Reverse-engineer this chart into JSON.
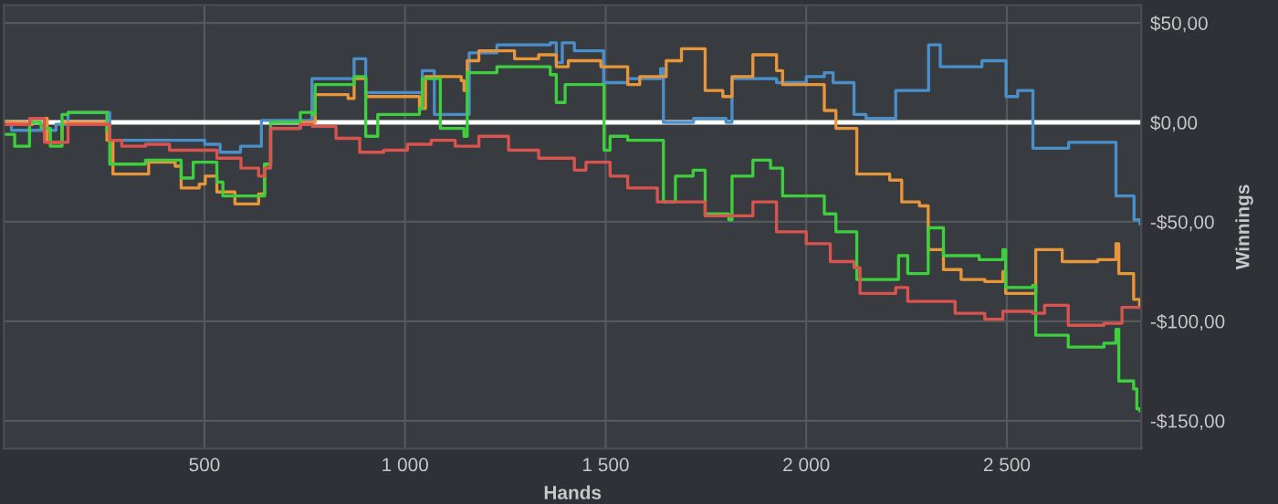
{
  "chart_data": {
    "type": "step",
    "xlabel": "Hands",
    "ylabel": "Winnings",
    "xlim": [
      0,
      2835
    ],
    "ylim": [
      -164,
      59
    ],
    "xticks": [
      500,
      {
        "value": 1000,
        "label": "1 000"
      },
      {
        "value": 1500,
        "label": "1 500"
      },
      {
        "value": 2000,
        "label": "2 000"
      },
      {
        "value": 2500,
        "label": "2 500"
      }
    ],
    "yticks": [
      {
        "value": 50,
        "label": "$50,00"
      },
      {
        "value": 0,
        "label": "$0,00"
      },
      {
        "value": -50,
        "label": "-$50,00"
      },
      {
        "value": -100,
        "label": "-$100,00"
      },
      {
        "value": -150,
        "label": "-$150,00"
      }
    ],
    "grid": true,
    "line_style": "solid",
    "marker": "none",
    "ref_lines": [
      {
        "axis": "y",
        "value": 0,
        "color": "#ffffff"
      }
    ],
    "series": [
      {
        "color": "#4a8fc9",
        "x": [
          0,
          19,
          130,
          160,
          256,
          264,
          501,
          539,
          590,
          642,
          768,
          873,
          902,
          1036,
          1043,
          1066,
          1073,
          1160,
          1229,
          1362,
          1377,
          1392,
          1422,
          1495,
          1555,
          1637,
          1644,
          1719,
          1800,
          1815,
          1926,
          2000,
          2045,
          2067,
          2119,
          2149,
          2223,
          2305,
          2334,
          2431,
          2438,
          2498,
          2527,
          2565,
          2654,
          2772,
          2817,
          2832
        ],
        "values": [
          0,
          -4,
          -1,
          5,
          5,
          -9,
          -11,
          -15,
          -12,
          1,
          22,
          32,
          15,
          15,
          26,
          26,
          4,
          35,
          39,
          40,
          30,
          40,
          36,
          20,
          22,
          27,
          0,
          2,
          0,
          22,
          20,
          23,
          25,
          20,
          4,
          2,
          16,
          39,
          28,
          28,
          31,
          13,
          16,
          -13,
          -10,
          -37,
          -49,
          -51
        ]
      },
      {
        "color": "#e8963a",
        "x": [
          0,
          56,
          71,
          108,
          145,
          234,
          257,
          272,
          353,
          361,
          427,
          442,
          487,
          502,
          531,
          576,
          635,
          650,
          665,
          739,
          769,
          776,
          858,
          873,
          902,
          1036,
          1051,
          1140,
          1147,
          1155,
          1184,
          1273,
          1333,
          1377,
          1407,
          1488,
          1555,
          1585,
          1637,
          1651,
          1689,
          1718,
          1748,
          1792,
          1815,
          1867,
          1926,
          1941,
          2000,
          2045,
          2074,
          2104,
          2126,
          2208,
          2238,
          2282,
          2304,
          2342,
          2386,
          2445,
          2490,
          2497,
          2564,
          2572,
          2638,
          2727,
          2772,
          2779,
          2816,
          2831
        ],
        "values": [
          0,
          -1,
          2,
          -10,
          0,
          0,
          -9,
          -26,
          -26,
          -20,
          -22,
          -33,
          -31,
          -27,
          -35,
          -41,
          -36,
          -21,
          -3,
          0,
          0,
          14,
          12,
          22,
          13,
          7,
          23,
          21,
          16,
          31,
          36,
          32,
          34,
          28,
          31,
          28,
          19,
          23,
          23,
          31,
          37,
          37,
          16,
          13,
          23,
          34,
          26,
          19,
          19,
          6,
          -3,
          -3,
          -26,
          -29,
          -40,
          -42,
          -64,
          -74,
          -79,
          -80,
          -75,
          -86,
          -86,
          -64,
          -70,
          -69,
          -61,
          -76,
          -89,
          -92
        ]
      },
      {
        "color": "#3ecf3e",
        "x": [
          0,
          27,
          64,
          93,
          116,
          145,
          160,
          234,
          257,
          264,
          353,
          442,
          472,
          531,
          546,
          635,
          650,
          665,
          739,
          769,
          776,
          873,
          902,
          932,
          1036,
          1043,
          1080,
          1088,
          1147,
          1155,
          1229,
          1362,
          1377,
          1399,
          1488,
          1496,
          1511,
          1555,
          1637,
          1644,
          1674,
          1718,
          1748,
          1807,
          1815,
          1867,
          1911,
          1941,
          2000,
          2045,
          2074,
          2119,
          2126,
          2208,
          2230,
          2253,
          2297,
          2304,
          2342,
          2431,
          2490,
          2497,
          2564,
          2572,
          2653,
          2742,
          2772,
          2779,
          2816,
          2824,
          2832
        ],
        "values": [
          -6,
          -12,
          0,
          -3,
          -12,
          4,
          5,
          5,
          -4,
          -21,
          -19,
          -28,
          -20,
          -30,
          -37,
          -37,
          -21,
          0,
          5,
          4,
          19,
          23,
          -7,
          4,
          7,
          22,
          22,
          -3,
          -7,
          25,
          28,
          24,
          10,
          19,
          19,
          -14,
          -7,
          -9,
          -9,
          -40,
          -27,
          -24,
          -46,
          -49,
          -27,
          -19,
          -23,
          -37,
          -37,
          -46,
          -55,
          -55,
          -79,
          -79,
          -67,
          -76,
          -76,
          -53,
          -67,
          -69,
          -64,
          -83,
          -82,
          -107,
          -113,
          -111,
          -104,
          -130,
          -134,
          -144,
          -145
        ]
      },
      {
        "color": "#d9534f",
        "x": [
          0,
          64,
          101,
          160,
          234,
          264,
          294,
          353,
          413,
          472,
          531,
          591,
          635,
          650,
          665,
          739,
          769,
          828,
          887,
          947,
          1006,
          1065,
          1125,
          1184,
          1258,
          1333,
          1422,
          1451,
          1511,
          1555,
          1629,
          1703,
          1748,
          1807,
          1867,
          1926,
          2000,
          2060,
          2119,
          2134,
          2223,
          2253,
          2371,
          2445,
          2490,
          2564,
          2594,
          2653,
          2742,
          2787,
          2832
        ],
        "values": [
          -1,
          2,
          -10,
          -1,
          -1,
          -9,
          -12,
          -11,
          -14,
          -14,
          -18,
          -23,
          -27,
          -23,
          -3,
          -1,
          -2,
          -8,
          -15,
          -14,
          -11,
          -9,
          -12,
          -7,
          -14,
          -18,
          -24,
          -20,
          -27,
          -33,
          -40,
          -40,
          -47,
          -47,
          -40,
          -55,
          -61,
          -70,
          -73,
          -86,
          -83,
          -90,
          -96,
          -99,
          -95,
          -96,
          -92,
          -102,
          -101,
          -93,
          -93
        ]
      }
    ]
  }
}
